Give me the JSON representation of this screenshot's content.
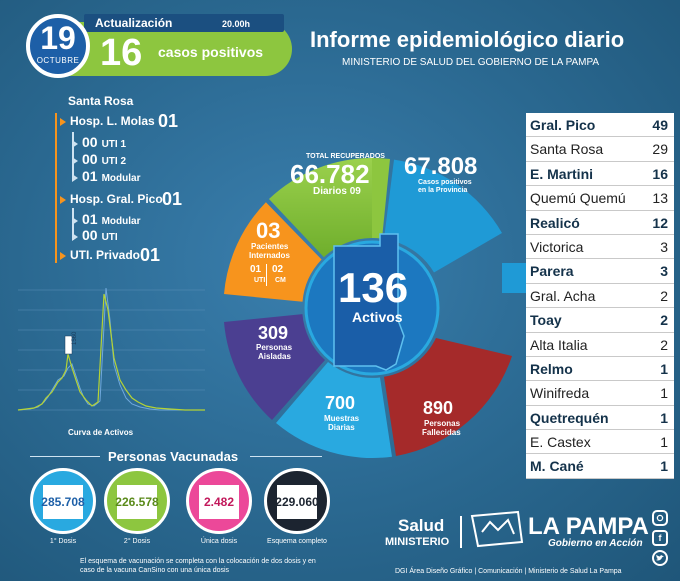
{
  "header": {
    "date_day": "19",
    "date_month": "OCTUBRE",
    "update_label": "Actualización",
    "update_time": "20.00h",
    "positives_count": "16",
    "positives_label": "casos positivos",
    "title": "Informe epidemiológico diario",
    "subtitle": "MINISTERIO DE SALUD DEL GOBIERNO DE LA PAMPA"
  },
  "hospitals": {
    "city": "Santa Rosa",
    "molas": {
      "label": "Hosp. L. Molas",
      "count": "01",
      "subs": [
        {
          "count": "00",
          "label": "UTI 1"
        },
        {
          "count": "00",
          "label": "UTI 2"
        },
        {
          "count": "01",
          "label": "Modular"
        }
      ]
    },
    "pico": {
      "label": "Hosp. Gral. Pico",
      "count": "01",
      "subs": [
        {
          "count": "01",
          "label": "Modular"
        },
        {
          "count": "00",
          "label": "UTI"
        }
      ]
    },
    "privado": {
      "label": "UTI. Privado",
      "count": "01"
    }
  },
  "chart": {
    "title": "Curva de Activos",
    "marker_label": "1560",
    "colors": {
      "green": "#b5d334",
      "blue": "#6fa8dc"
    }
  },
  "wheel": {
    "recovered_label": "TOTAL RECUPERADOS",
    "recovered_total": "66.782",
    "recovered_daily_label": "Diarios",
    "recovered_daily": "09",
    "positive_total": "67.808",
    "positive_label_1": "Casos positivos",
    "positive_label_2": "en la Provincia",
    "hospitalized": "03",
    "hospitalized_label_1": "Pacientes",
    "hospitalized_label_2": "Internados",
    "uti_count": "01",
    "uti_label": "UTI",
    "cm_count": "02",
    "cm_label": "CM",
    "active": "136",
    "active_label": "Activos",
    "isolated": "309",
    "isolated_label_1": "Personas",
    "isolated_label_2": "Aisladas",
    "samples": "700",
    "samples_label_1": "Muestras",
    "samples_label_2": "Diarias",
    "deaths": "890",
    "deaths_label_1": "Personas",
    "deaths_label_2": "Fallecidas",
    "colors": {
      "green": "#8dc63f",
      "blue": "#1f9ad6",
      "orange": "#f7941d",
      "purple": "#4b3f91",
      "light_blue": "#29a9e0",
      "red": "#a52a2a",
      "dark_blue": "#1a5ea8"
    }
  },
  "vaccines": {
    "title": "Personas Vacunadas",
    "items": [
      {
        "value": "285.708",
        "label": "1° Dosis",
        "color": "#29a9e0"
      },
      {
        "value": "226.578",
        "label": "2° Dosis",
        "color": "#8dc63f"
      },
      {
        "value": "2.482",
        "label": "Única dosis",
        "color": "#ec4899"
      },
      {
        "value": "229.060",
        "label": "Esquema completo",
        "color": "#1c2430"
      }
    ],
    "footnote": "El esquema de vacunación se completa con la colocación de dos dosis y en caso de la vacuna CanSino con una única dosis"
  },
  "localities": [
    {
      "name": "Gral. Pico",
      "count": "49",
      "bold": true
    },
    {
      "name": "Santa Rosa",
      "count": "29",
      "bold": false
    },
    {
      "name": "E. Martini",
      "count": "16",
      "bold": true
    },
    {
      "name": "Quemú Quemú",
      "count": "13",
      "bold": false
    },
    {
      "name": "Realicó",
      "count": "12",
      "bold": true
    },
    {
      "name": "Victorica",
      "count": "3",
      "bold": false
    },
    {
      "name": "Parera",
      "count": "3",
      "bold": true
    },
    {
      "name": "Gral. Acha",
      "count": "2",
      "bold": false
    },
    {
      "name": "Toay",
      "count": "2",
      "bold": true
    },
    {
      "name": "Alta Italia",
      "count": "2",
      "bold": false
    },
    {
      "name": "Relmo",
      "count": "1",
      "bold": true
    },
    {
      "name": "Winifreda",
      "count": "1",
      "bold": false
    },
    {
      "name": "Quetrequén",
      "count": "1",
      "bold": true
    },
    {
      "name": "E. Castex",
      "count": "1",
      "bold": false
    },
    {
      "name": "M. Cané",
      "count": "1",
      "bold": true
    }
  ],
  "footer": {
    "salud": "Salud",
    "ministerio": "MINISTERIO",
    "la_pampa": "LA PAMPA",
    "gobierno": "Gobierno en Acción",
    "credits": "DGI Área Diseño Gráfico | Comunicación | Ministerio de Salud La Pampa",
    "social": [
      "instagram-icon",
      "facebook-icon",
      "twitter-icon"
    ]
  }
}
